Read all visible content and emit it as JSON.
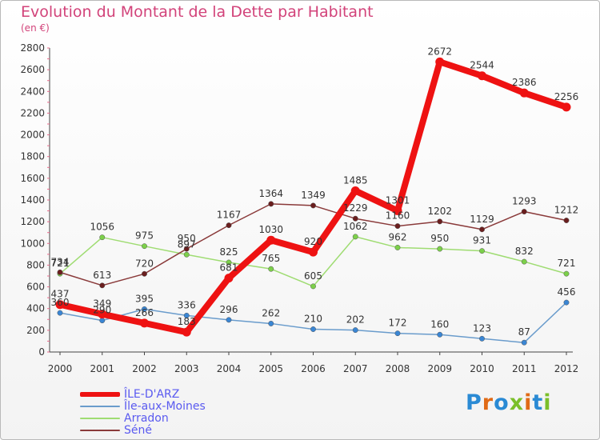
{
  "header": {
    "title": "Evolution du Montant de la Dette par Habitant",
    "unit": "(en €)"
  },
  "logo": {
    "text": "Proxiti",
    "colors": [
      "#2a8ad4",
      "#e06a16",
      "#2a8ad4",
      "#7bbf2a",
      "#e06a16",
      "#2a8ad4",
      "#7bbf2a"
    ]
  },
  "chart_data": {
    "type": "line",
    "title": "Evolution du Montant de la Dette par Habitant",
    "ylabel": "(en €)",
    "xlabel": "",
    "x": [
      "2000",
      "2001",
      "2002",
      "2003",
      "2004",
      "2005",
      "2006",
      "2007",
      "2008",
      "2009",
      "2010",
      "2011",
      "2012"
    ],
    "ylim": [
      0,
      2800
    ],
    "yticks": [
      0,
      200,
      400,
      600,
      800,
      1000,
      1200,
      1400,
      1600,
      1800,
      2000,
      2200,
      2400,
      2600,
      2800
    ],
    "grid": false,
    "legend": "bottom-left",
    "series": [
      {
        "name": "Île-aux-Moines",
        "color": "#6a9ccc",
        "width": 1.5,
        "marker": "#3a86d4",
        "values": [
          360,
          290,
          395,
          336,
          296,
          262,
          210,
          202,
          172,
          160,
          123,
          87,
          456
        ]
      },
      {
        "name": "Arradon",
        "color": "#9fdc72",
        "width": 1.5,
        "marker": "#7cd04a",
        "values": [
          721,
          1056,
          975,
          897,
          825,
          765,
          605,
          1062,
          962,
          950,
          931,
          832,
          721
        ]
      },
      {
        "name": "Séné",
        "color": "#8a3a3a",
        "width": 1.5,
        "marker": "#6a1e1e",
        "values": [
          734,
          613,
          720,
          950,
          1167,
          1364,
          1349,
          1229,
          1160,
          1202,
          1129,
          1293,
          1212
        ]
      },
      {
        "name": "ÎLE-D'ARZ",
        "color": "#ee1212",
        "width": 8,
        "marker": "#ee1212",
        "values": [
          437,
          349,
          266,
          183,
          681,
          1030,
          920,
          1485,
          1301,
          2672,
          2544,
          2386,
          2256
        ]
      }
    ],
    "labels": [
      {
        "series": "Île-aux-Moines",
        "texts": [
          "360",
          "290",
          "395",
          "336",
          "296",
          "262",
          "210",
          "202",
          "172",
          "160",
          "123",
          "87",
          "456"
        ]
      },
      {
        "series": "Arradon",
        "texts": [
          "721",
          "1056",
          "975",
          "897",
          "825",
          "765",
          "605",
          "1062",
          "962",
          "950",
          "931",
          "832",
          "721"
        ]
      },
      {
        "series": "Séné",
        "texts": [
          "734",
          "613",
          "720",
          "950",
          "1167",
          "1364",
          "1349",
          "1229",
          "1160",
          "1202",
          "1129",
          "1293",
          "1212"
        ]
      },
      {
        "series": "ÎLE-D'ARZ",
        "texts": [
          "437",
          "349",
          "266",
          "183",
          "681",
          "1030",
          "920",
          "1485",
          "1301",
          "2672",
          "2544",
          "2386",
          "2256"
        ]
      }
    ]
  },
  "legend": {
    "items": [
      {
        "label": "ÎLE-D'ARZ",
        "color": "#ee1212"
      },
      {
        "label": "Île-aux-Moines",
        "color": "#6a9ccc"
      },
      {
        "label": "Arradon",
        "color": "#9fdc72"
      },
      {
        "label": "Séné",
        "color": "#8a3a3a"
      }
    ]
  }
}
